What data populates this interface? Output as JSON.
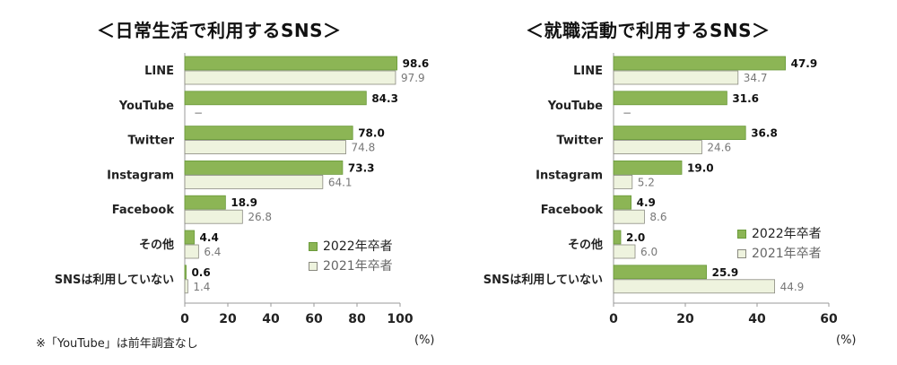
{
  "colors": {
    "current_fill": "#8cb555",
    "current_stroke": "#6a9a3a",
    "prev_fill": "#eef3de",
    "prev_stroke": "#8a8a80",
    "current_label": "#111111",
    "prev_label": "#777777",
    "axis": "#999999"
  },
  "footnote": "※「YouTube」は前年調査なし",
  "chart_data": [
    {
      "type": "bar",
      "orientation": "horizontal",
      "title": "＜日常生活で利用するSNS＞",
      "categories": [
        "LINE",
        "YouTube",
        "Twitter",
        "Instagram",
        "Facebook",
        "その他",
        "SNSは利用していない"
      ],
      "series": [
        {
          "name": "2022年卒者",
          "values": [
            98.6,
            84.3,
            78.0,
            73.3,
            18.9,
            4.4,
            0.6
          ],
          "labels": [
            "98.6",
            "84.3",
            "78.0",
            "73.3",
            "18.9",
            "4.4",
            "0.6"
          ]
        },
        {
          "name": "2021年卒者",
          "values": [
            97.9,
            null,
            74.8,
            64.1,
            26.8,
            6.4,
            1.4
          ],
          "labels": [
            "97.9",
            "−",
            "74.8",
            "64.1",
            "26.8",
            "6.4",
            "1.4"
          ]
        }
      ],
      "xlim": [
        0,
        100
      ],
      "xticks": [
        "0",
        "20",
        "40",
        "60",
        "80",
        "100"
      ],
      "unit": "(%)",
      "legend_position": "bottom-right",
      "grid": false
    },
    {
      "type": "bar",
      "orientation": "horizontal",
      "title": "＜就職活動で利用するSNS＞",
      "categories": [
        "LINE",
        "YouTube",
        "Twitter",
        "Instagram",
        "Facebook",
        "その他",
        "SNSは利用していない"
      ],
      "series": [
        {
          "name": "2022年卒者",
          "values": [
            47.9,
            31.6,
            36.8,
            19.0,
            4.9,
            2.0,
            25.9
          ],
          "labels": [
            "47.9",
            "31.6",
            "36.8",
            "19.0",
            "4.9",
            "2.0",
            "25.9"
          ]
        },
        {
          "name": "2021年卒者",
          "values": [
            34.7,
            null,
            24.6,
            5.2,
            8.6,
            6.0,
            44.9
          ],
          "labels": [
            "34.7",
            "−",
            "24.6",
            "5.2",
            "8.6",
            "6.0",
            "44.9"
          ]
        }
      ],
      "xlim": [
        0,
        60
      ],
      "xticks": [
        "0",
        "20",
        "40",
        "60"
      ],
      "unit": "(%)",
      "legend_position": "bottom-right",
      "grid": false
    }
  ]
}
